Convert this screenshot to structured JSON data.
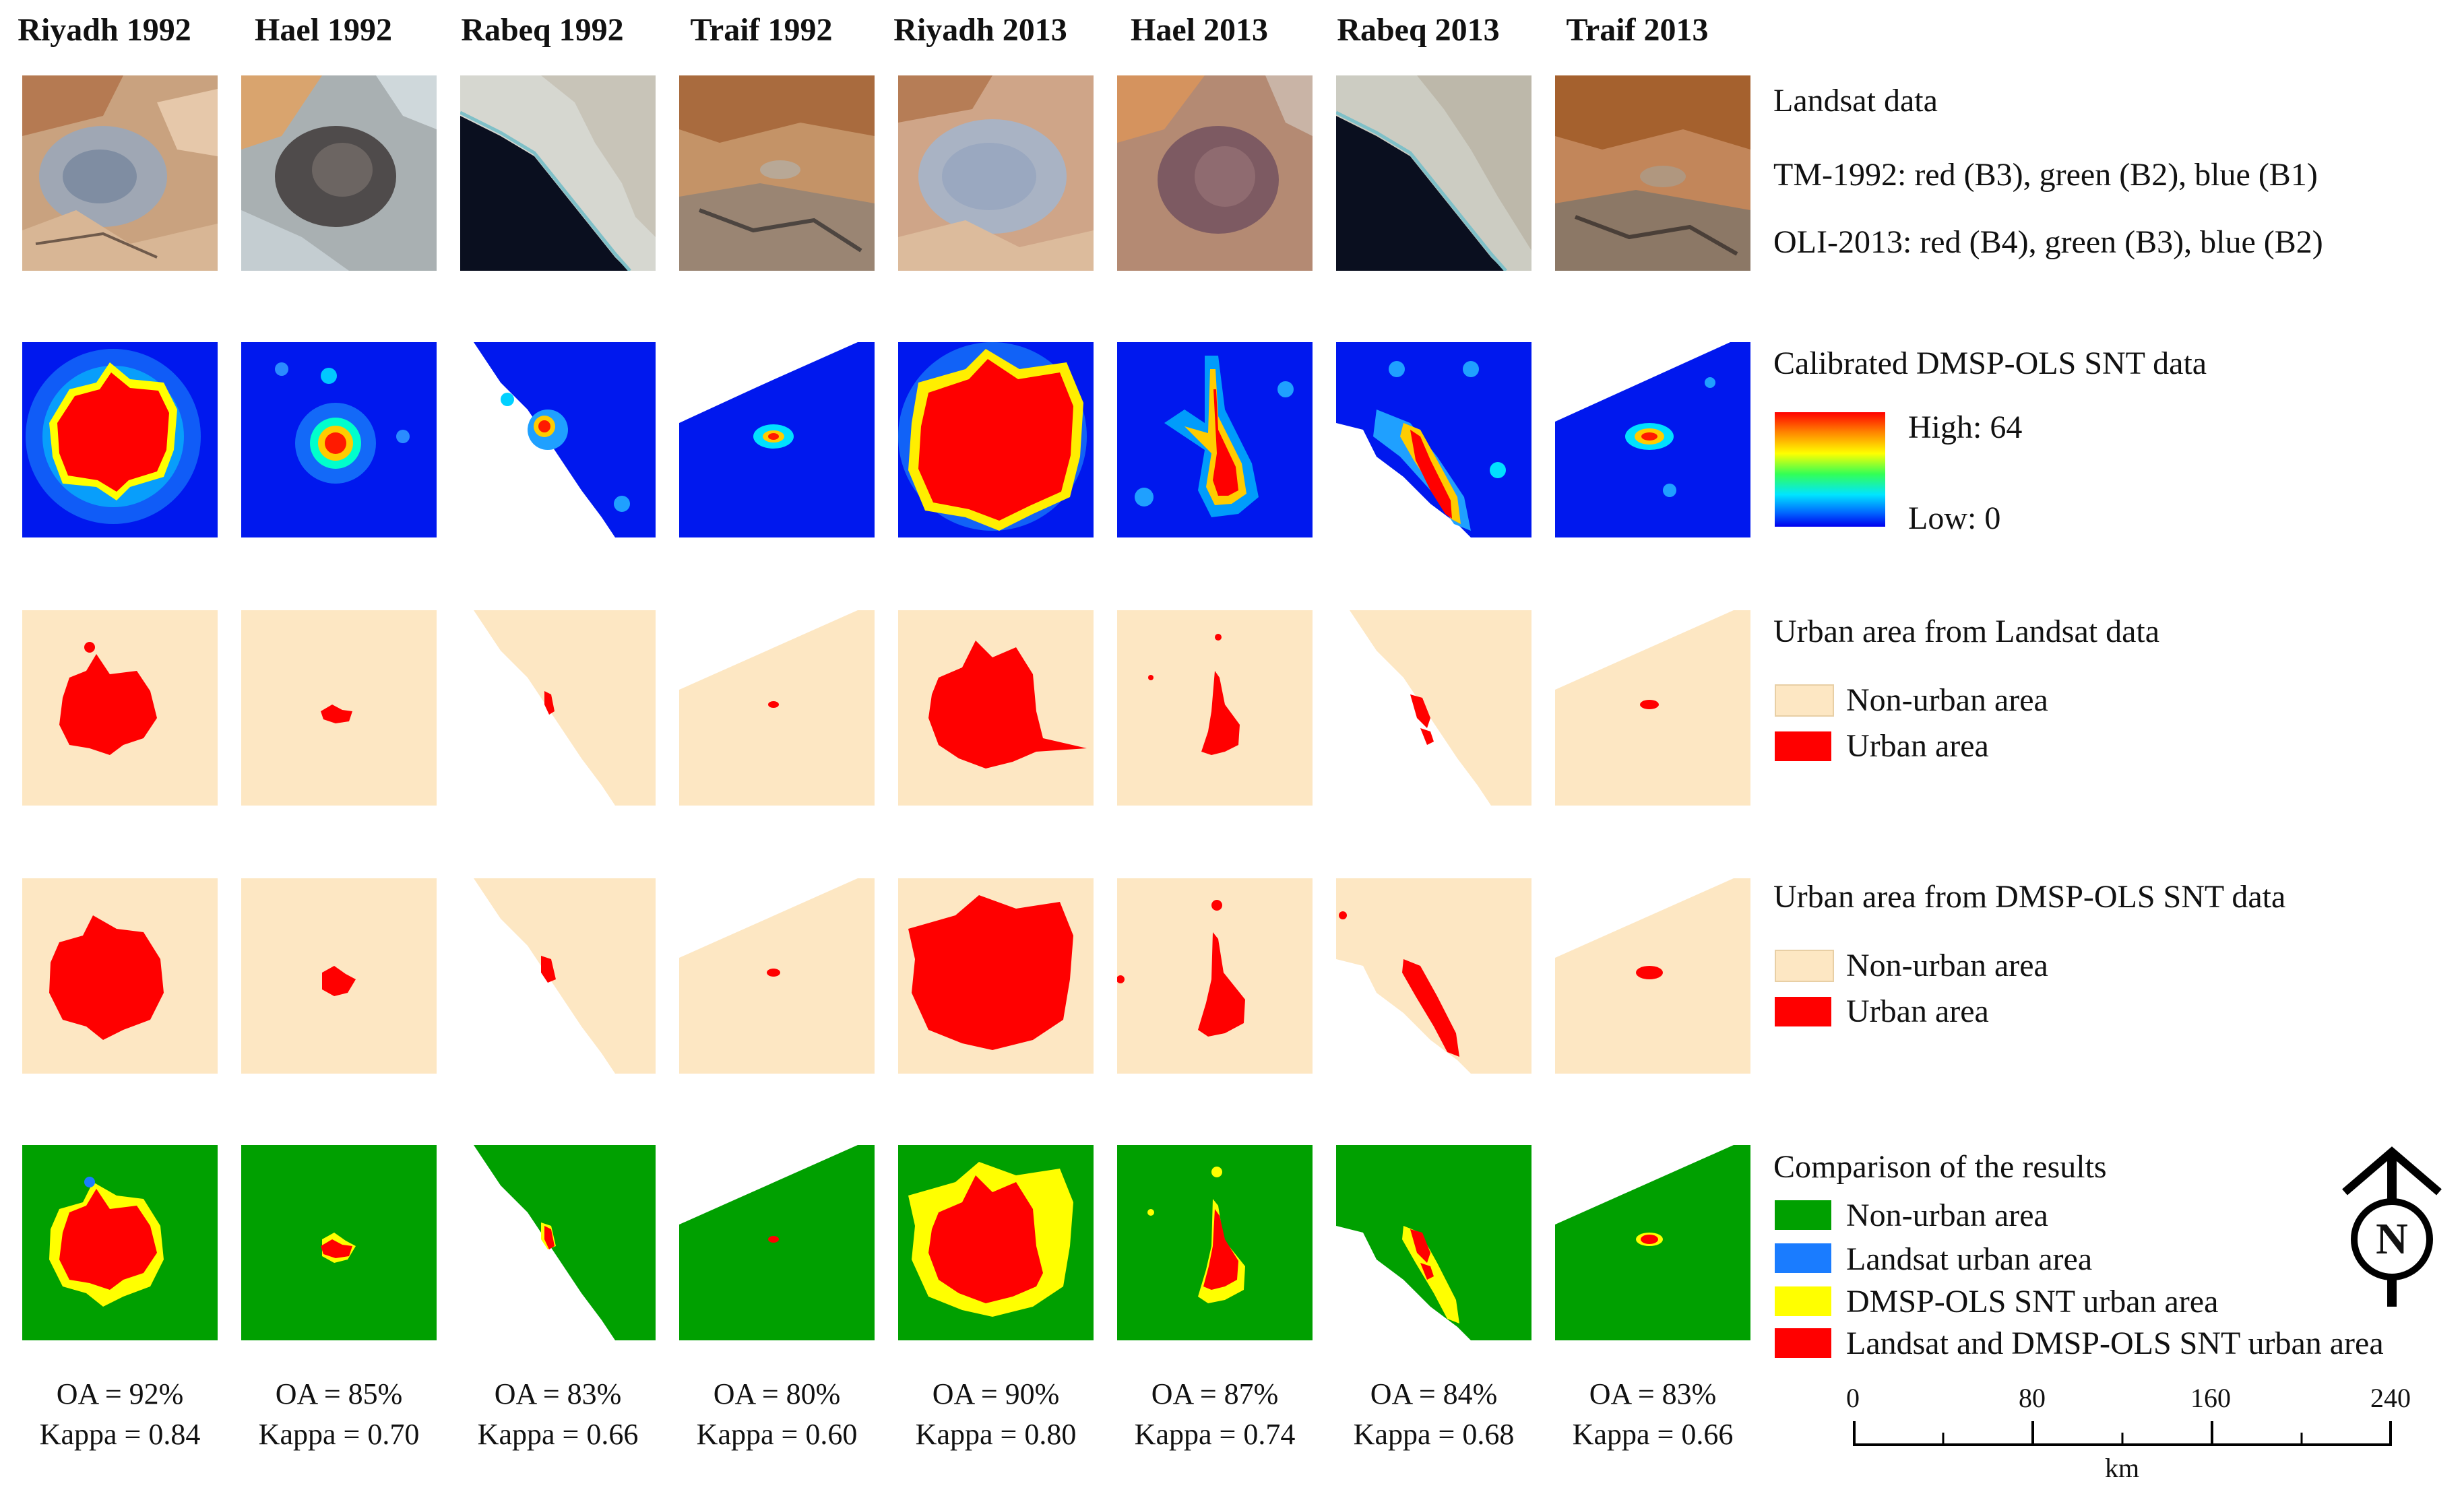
{
  "columns": [
    {
      "name": "Riyadh 1992",
      "oa": "OA = 92%",
      "kappa": "Kappa = 0.84"
    },
    {
      "name": "Hael 1992",
      "oa": "OA = 85%",
      "kappa": "Kappa = 0.70"
    },
    {
      "name": "Rabeq 1992",
      "oa": "OA = 83%",
      "kappa": "Kappa = 0.66"
    },
    {
      "name": "Traif 1992",
      "oa": "OA = 80%",
      "kappa": "Kappa = 0.60"
    },
    {
      "name": "Riyadh 2013",
      "oa": "OA = 90%",
      "kappa": "Kappa = 0.80"
    },
    {
      "name": "Hael 2013",
      "oa": "OA = 87%",
      "kappa": "Kappa = 0.74"
    },
    {
      "name": "Rabeq 2013",
      "oa": "OA = 84%",
      "kappa": "Kappa = 0.68"
    },
    {
      "name": "Traif 2013",
      "oa": "OA = 83%",
      "kappa": "Kappa = 0.66"
    }
  ],
  "legend": {
    "landsat": {
      "title": "Landsat data",
      "line1": "TM-1992: red (B3), green (B2), blue (B1)",
      "line2": "OLI-2013: red (B4), green (B3), blue (B2)"
    },
    "ntl": {
      "title": "Calibrated DMSP-OLS SNT data",
      "high": "High: 64",
      "low": "Low: 0"
    },
    "urban_landsat": {
      "title": "Urban area from Landsat data",
      "items": [
        "Non-urban area",
        "Urban area"
      ]
    },
    "urban_dmsp": {
      "title": "Urban area from DMSP-OLS SNT data",
      "items": [
        "Non-urban area",
        "Urban area"
      ]
    },
    "comparison": {
      "title": "Comparison of the results",
      "items": [
        "Non-urban area",
        "Landsat urban area",
        "DMSP-OLS SNT urban area",
        "Landsat and DMSP-OLS SNT urban area"
      ]
    }
  },
  "north_arrow": {
    "label": "N"
  },
  "scale_bar": {
    "ticks": [
      "0",
      "80",
      "160",
      "240"
    ],
    "unit": "km"
  },
  "colors": {
    "non_urban": "#fde7c3",
    "urban": "#ff0000",
    "agree_non_urban": "#00a000",
    "landsat_only": "#1a7cff",
    "dmsp_only": "#ffff00",
    "both_urban": "#ff0000",
    "ntl_low": "#0000ee",
    "ntl_high": "#ff0000"
  }
}
